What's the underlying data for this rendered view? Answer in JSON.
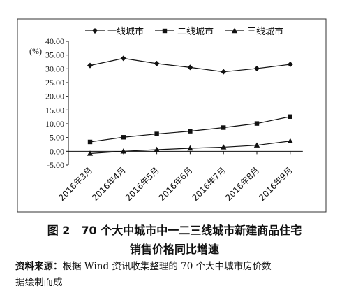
{
  "chart_data": {
    "type": "line",
    "unit_label": "(%)",
    "categories": [
      "2016年3月",
      "2016年4月",
      "2016年5月",
      "2016年6月",
      "2016年7月",
      "2016年8月",
      "2016年9月"
    ],
    "series": [
      {
        "name": "一线城市",
        "marker": "diamond",
        "values": [
          31.2,
          33.8,
          31.9,
          30.5,
          28.9,
          30.1,
          31.6
        ]
      },
      {
        "name": "二线城市",
        "marker": "square",
        "values": [
          3.4,
          5.1,
          6.3,
          7.3,
          8.6,
          10.1,
          12.6
        ]
      },
      {
        "name": "三线城市",
        "marker": "triangle",
        "values": [
          -0.8,
          0.0,
          0.6,
          1.1,
          1.5,
          2.2,
          3.7
        ]
      }
    ],
    "yticks": [
      "40.00",
      "35.00",
      "30.00",
      "25.00",
      "20.00",
      "15.00",
      "10.00",
      "5.00",
      "0.00",
      "-5.00"
    ],
    "ylim": [
      -5,
      40
    ],
    "legend_position": "top",
    "grid": false,
    "line_color": "#111111"
  },
  "caption": {
    "line1": "图 2　70 个大中城市中一二三线城市新建商品住宅",
    "line2": "销售价格同比增速"
  },
  "source": {
    "label": "资料来源：",
    "text1": "根据 Wind 资讯收集整理的 70 个大中城市房价数",
    "text2": "据绘制而成"
  }
}
